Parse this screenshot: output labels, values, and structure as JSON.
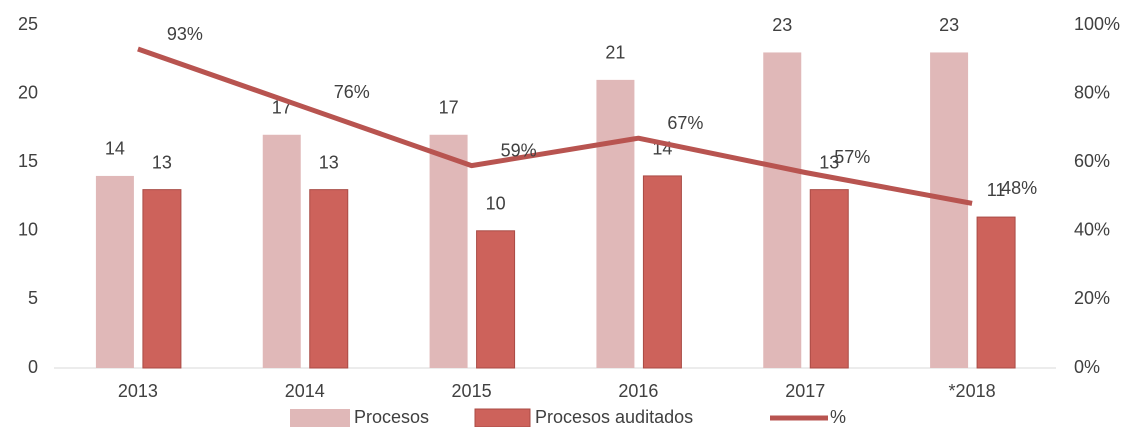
{
  "chart_data": {
    "type": "bar",
    "categories": [
      "2013",
      "2014",
      "2015",
      "2016",
      "2017",
      "*2018"
    ],
    "series": [
      {
        "name": "Procesos",
        "color": "#e0b8b8",
        "values": [
          14,
          17,
          17,
          21,
          23,
          23
        ]
      },
      {
        "name": "Procesos auditados",
        "color": "#cd625b",
        "values": [
          13,
          13,
          10,
          14,
          13,
          11
        ]
      },
      {
        "name": "%",
        "type": "line",
        "axis": "y2",
        "color": "#b85450",
        "values": [
          93,
          76,
          59,
          67,
          57,
          48
        ],
        "value_labels": [
          "93%",
          "76%",
          "59%",
          "67%",
          "57%",
          "48%"
        ]
      }
    ],
    "ylim": [
      0,
      25
    ],
    "yticks": [
      0,
      5,
      10,
      15,
      20,
      25
    ],
    "y2lim": [
      0,
      100
    ],
    "y2ticks": [
      {
        "value": 0,
        "label": "0%"
      },
      {
        "value": 20,
        "label": "20%"
      },
      {
        "value": 40,
        "label": "40%"
      },
      {
        "value": 60,
        "label": "60%"
      },
      {
        "value": 80,
        "label": "80%"
      },
      {
        "value": 100,
        "label": "100%"
      }
    ],
    "grid": false,
    "legend": "bottom"
  }
}
